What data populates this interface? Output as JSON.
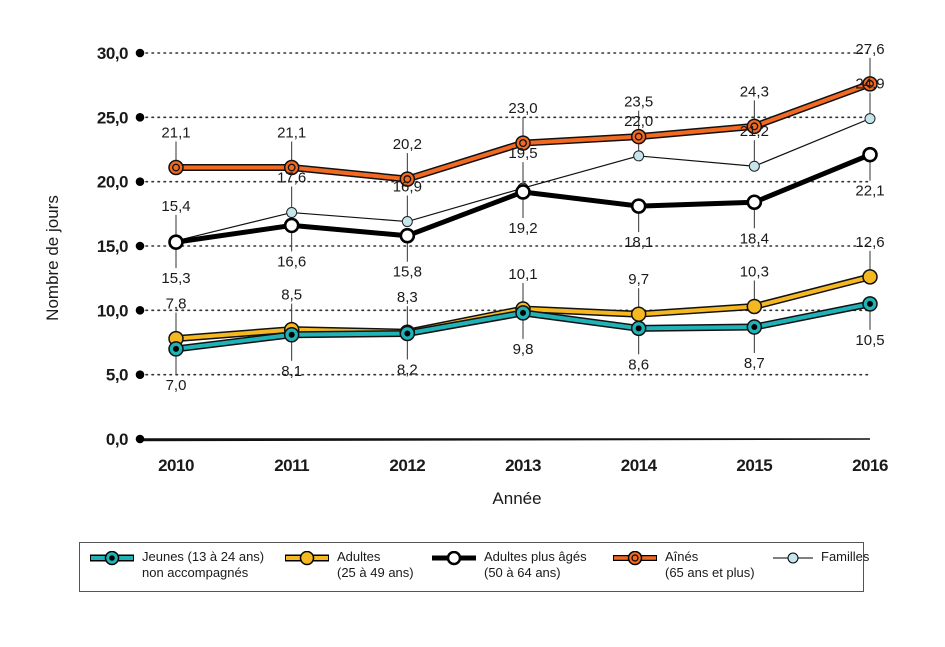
{
  "chart_data": {
    "type": "line",
    "title": "",
    "xlabel": "Année",
    "ylabel": "Nombre de jours",
    "x": [
      "2010",
      "2011",
      "2012",
      "2013",
      "2014",
      "2015",
      "2016"
    ],
    "ylim": [
      0,
      30
    ],
    "yticks": [
      0,
      5,
      10,
      15,
      20,
      25,
      30
    ],
    "ytick_labels": [
      "0,0",
      "5,0",
      "10,0",
      "15,0",
      "20,0",
      "25,0",
      "30,0"
    ],
    "grid": "horizontal dotted",
    "legend_position": "bottom",
    "series": [
      {
        "key": "jeunes",
        "name": "Jeunes (13 à 24 ans)\nnon accompagnés",
        "color": "#1fb3b8",
        "marker": "ring-dot",
        "label_position": "below",
        "values": [
          7.0,
          8.1,
          8.2,
          9.8,
          8.6,
          8.7,
          10.5
        ],
        "labels": [
          "7,0",
          "8,1",
          "8,2",
          "9,8",
          "8,6",
          "8,7",
          "10,5"
        ]
      },
      {
        "key": "adultes",
        "name": "Adultes\n(25 à 49 ans)",
        "color": "#f5b820",
        "marker": "filled",
        "label_position": "above",
        "values": [
          7.8,
          8.5,
          8.3,
          10.1,
          9.7,
          10.3,
          12.6
        ],
        "labels": [
          "7,8",
          "8,5",
          "8,3",
          "10,1",
          "9,7",
          "10,3",
          "12,6"
        ]
      },
      {
        "key": "ages",
        "name": "Adultes plus âgés\n(50 à 64 ans)",
        "color": "#000000",
        "marker": "hollow",
        "label_position": "below",
        "values": [
          15.3,
          16.6,
          15.8,
          19.2,
          18.1,
          18.4,
          22.1
        ],
        "labels": [
          "15,3",
          "16,6",
          "15,8",
          "19,2",
          "18,1",
          "18,4",
          "22,1"
        ]
      },
      {
        "key": "aines",
        "name": "Aînés\n(65 ans et plus)",
        "color": "#f26a21",
        "marker": "ring-dot",
        "label_position": "above",
        "values": [
          21.1,
          21.1,
          20.2,
          23.0,
          23.5,
          24.3,
          27.6
        ],
        "labels": [
          "21,1",
          "21,1",
          "20,2",
          "23,0",
          "23,5",
          "24,3",
          "27,6"
        ]
      },
      {
        "key": "familles",
        "name": "Familles",
        "color": "#c5e6ec",
        "marker": "small-filled",
        "label_position": "above",
        "values": [
          15.4,
          17.6,
          16.9,
          19.5,
          22.0,
          21.2,
          24.9
        ],
        "labels": [
          "15,4",
          "17,6",
          "16,9",
          "19,5",
          "22,0",
          "21,2",
          "24,9"
        ]
      }
    ]
  }
}
